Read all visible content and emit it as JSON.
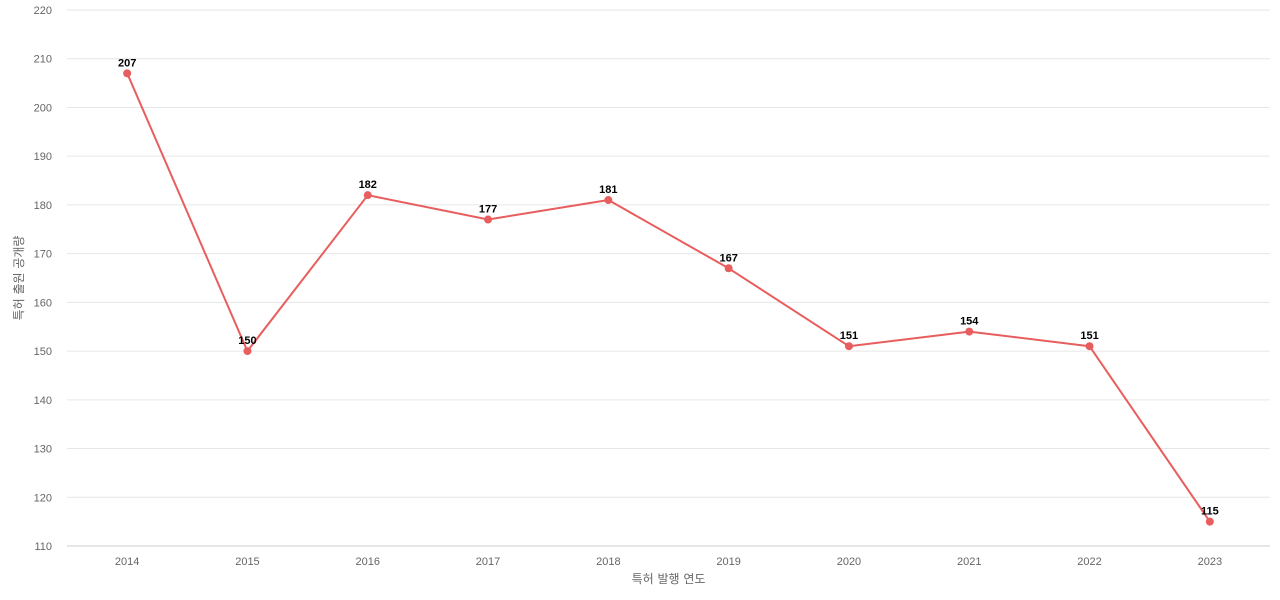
{
  "chart_data": {
    "type": "line",
    "title": "",
    "xlabel": "특허 발행 연도",
    "ylabel": "특허 출원 공개량",
    "categories": [
      "2014",
      "2015",
      "2016",
      "2017",
      "2018",
      "2019",
      "2020",
      "2021",
      "2022",
      "2023"
    ],
    "series": [
      {
        "values": [
          207,
          150,
          182,
          177,
          181,
          167,
          151,
          154,
          151,
          115
        ],
        "color": "#e85d5d"
      }
    ],
    "ylim": [
      110,
      220
    ],
    "yticks": [
      110,
      120,
      130,
      140,
      150,
      160,
      170,
      180,
      190,
      200,
      210,
      220
    ],
    "grid": true,
    "legend": "none",
    "data_labels": true
  }
}
